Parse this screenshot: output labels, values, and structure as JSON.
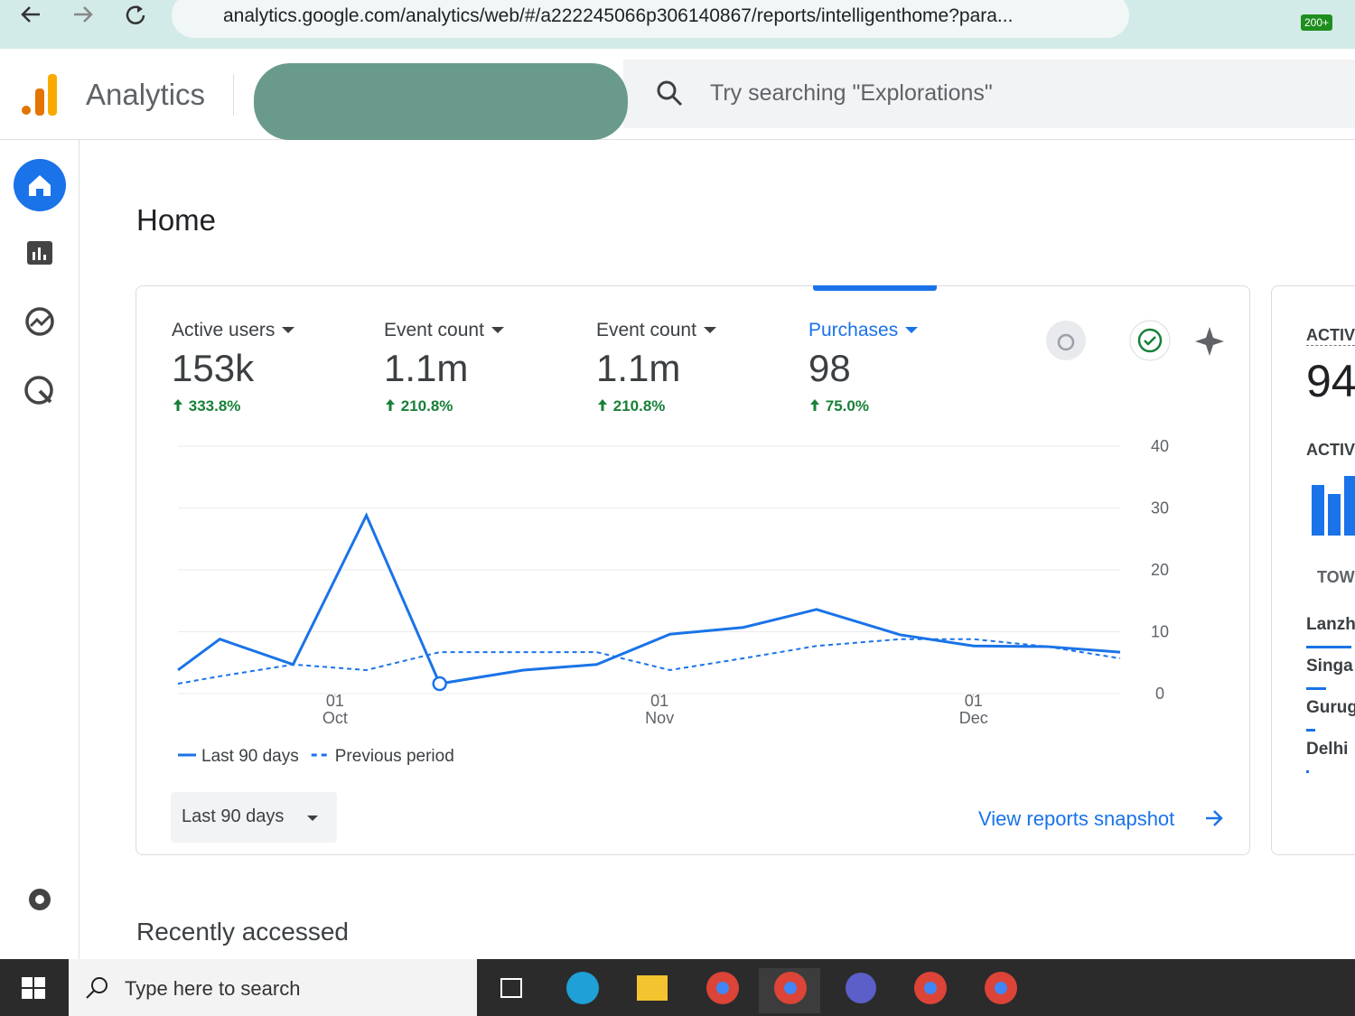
{
  "browser": {
    "url": "analytics.google.com/analytics/web/#/a222245066p306140867/reports/intelligenthome?para...",
    "badge": "200+"
  },
  "header": {
    "app_name": "Analytics",
    "search_placeholder": "Try searching \"Explorations\""
  },
  "page_title": "Home",
  "metrics": [
    {
      "label": "Active users",
      "value": "153k",
      "change": "333.8%"
    },
    {
      "label": "Event count",
      "value": "1.1m",
      "change": "210.8%"
    },
    {
      "label": "Event count",
      "value": "1.1m",
      "change": "210.8%"
    },
    {
      "label": "Purchases",
      "value": "98",
      "change": "75.0%"
    }
  ],
  "chart_data": {
    "type": "line",
    "x": [
      -15,
      -11,
      -4,
      3,
      10,
      18,
      25,
      32,
      39,
      46,
      54,
      61,
      68,
      75
    ],
    "xlim": [
      -15,
      75
    ],
    "xticks": [
      {
        "value": 0,
        "label": "01\nOct"
      },
      {
        "value": 31,
        "label": "01\nNov"
      },
      {
        "value": 61,
        "label": "01\nDec"
      }
    ],
    "ylim": [
      0,
      40
    ],
    "yticks": [
      0,
      10,
      20,
      30,
      40
    ],
    "grid": true,
    "series": [
      {
        "name": "Last 90 days",
        "color": "#1a73e8",
        "dashed": false,
        "values": [
          3.8,
          8.8,
          4.7,
          28.8,
          1.6,
          3.8,
          4.7,
          9.6,
          10.7,
          13.6,
          9.5,
          7.7,
          7.6,
          6.7
        ]
      },
      {
        "name": "Previous period",
        "color": "#1a73e8",
        "dashed": true,
        "values": [
          1.6,
          2.8,
          4.7,
          3.8,
          6.7,
          6.7,
          6.7,
          3.8,
          5.7,
          7.7,
          8.8,
          8.8,
          7.6,
          5.7
        ]
      }
    ],
    "highlight_index": 4
  },
  "date_range": "Last 90 days",
  "snapshot_link": "View reports snapshot",
  "side_panel": {
    "heading1": "ACTIV",
    "value": "94",
    "heading2": "ACTIV",
    "heading3": "TOW",
    "cities": [
      "Lanzh",
      "Singa",
      "Gurug",
      "Delhi"
    ]
  },
  "section_title": "Recently accessed",
  "taskbar": {
    "search": "Type here to search"
  }
}
